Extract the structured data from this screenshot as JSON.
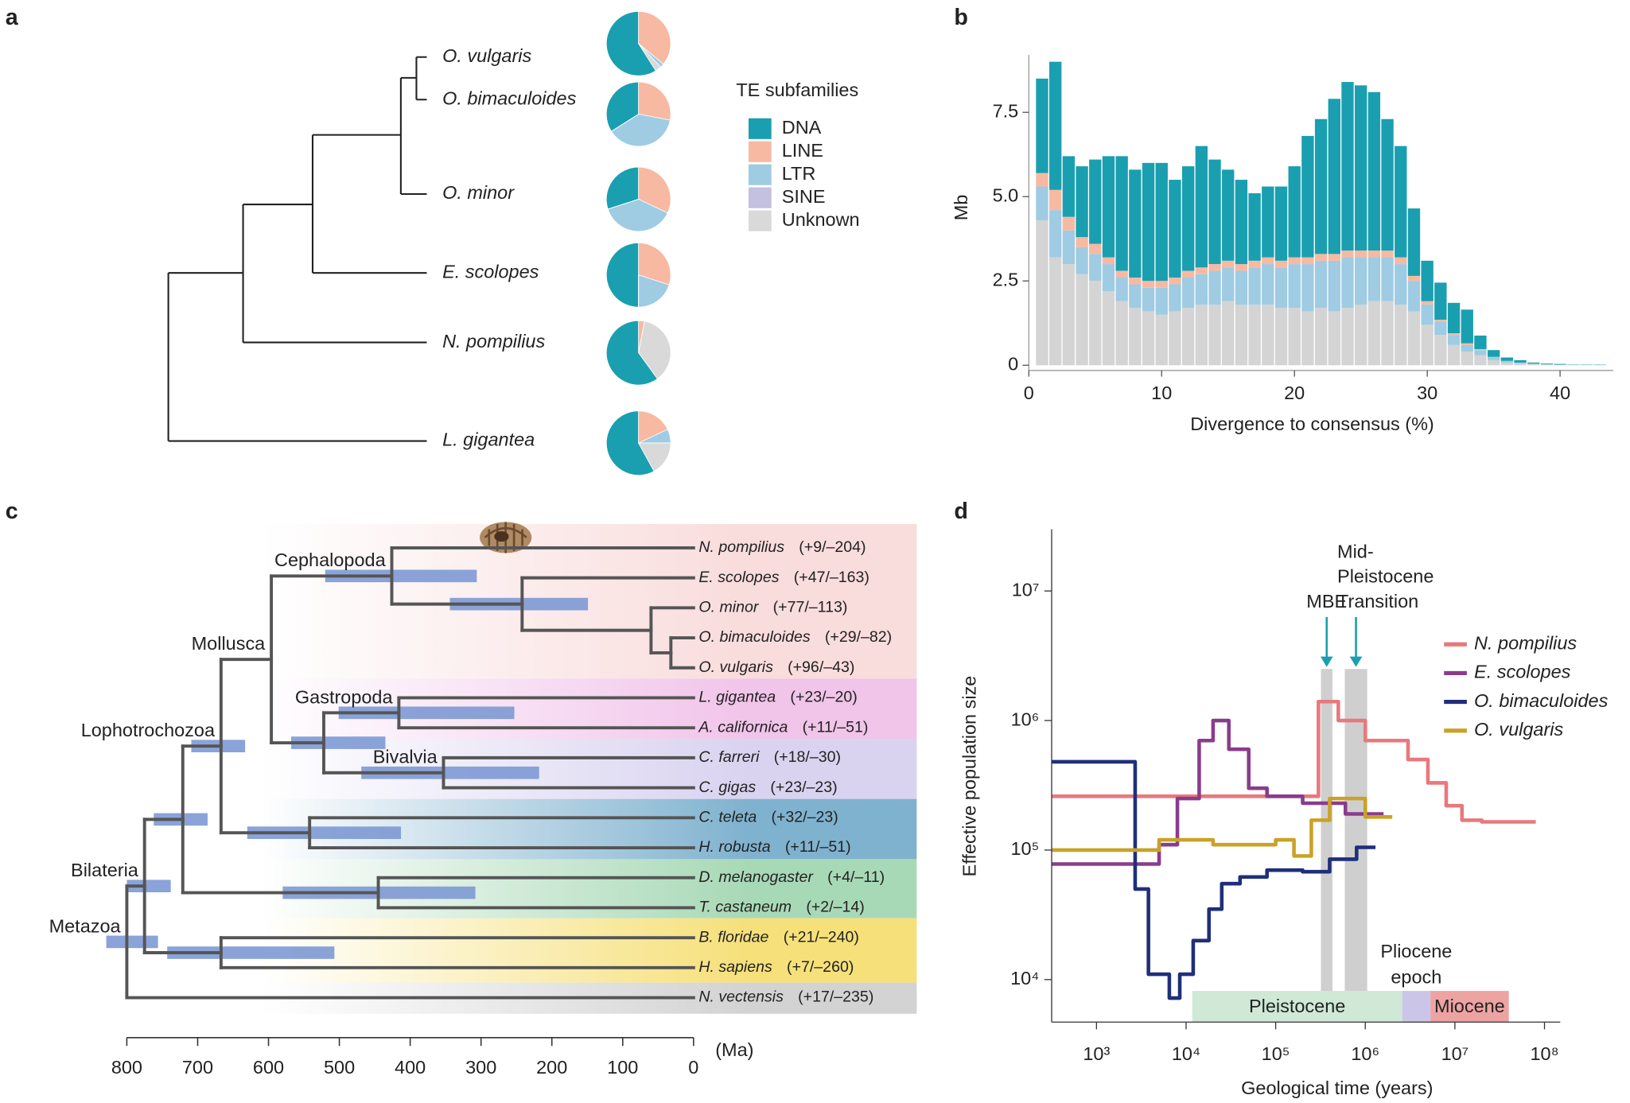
{
  "panel_labels": [
    "a",
    "b",
    "c",
    "d"
  ],
  "chart_data": [
    {
      "type": "pie",
      "legend_title": "TE subfamilies",
      "categories": [
        "DNA",
        "LINE",
        "LTR",
        "SINE",
        "Unknown"
      ],
      "colors": [
        "#1a9fb0",
        "#f7b9a1",
        "#9fcbe3",
        "#c3c0e0",
        "#d9d9d9"
      ],
      "series": [
        {
          "name": "O. vulgaris",
          "values": [
            59,
            36,
            2,
            0,
            3
          ]
        },
        {
          "name": "O. bimaculoides",
          "values": [
            34,
            28,
            38,
            0,
            0
          ]
        },
        {
          "name": "O. minor",
          "values": [
            30,
            32,
            38,
            0,
            0
          ]
        },
        {
          "name": "E. scolopes",
          "values": [
            50,
            30,
            20,
            0,
            0
          ]
        },
        {
          "name": "N. pompilius",
          "values": [
            60,
            3,
            0,
            0,
            37
          ]
        },
        {
          "name": "L. gigantea",
          "values": [
            58,
            18,
            7,
            0,
            17
          ]
        }
      ]
    },
    {
      "type": "bar",
      "stacked": true,
      "xlabel": "Divergence to consensus (%)",
      "ylabel": "Mb",
      "x": [
        1,
        2,
        3,
        4,
        5,
        6,
        7,
        8,
        9,
        10,
        11,
        12,
        13,
        14,
        15,
        16,
        17,
        18,
        19,
        20,
        21,
        22,
        23,
        24,
        25,
        26,
        27,
        28,
        29,
        30,
        31,
        32,
        33,
        34,
        35,
        36,
        37,
        38,
        39,
        40,
        41,
        42,
        43
      ],
      "xlim": [
        0,
        44
      ],
      "xticks": [
        0,
        10,
        20,
        30,
        40
      ],
      "ylim": [
        0,
        9.2
      ],
      "yticks": [
        0,
        2.5,
        {
          "value": 5,
          "label": "5.0"
        },
        7.5
      ],
      "series": [
        {
          "name": "Unknown",
          "color": "#d4d4d4",
          "values": [
            4.3,
            3.2,
            3.0,
            2.7,
            2.5,
            2.2,
            1.9,
            1.7,
            1.6,
            1.5,
            1.6,
            1.7,
            1.8,
            1.8,
            1.9,
            1.8,
            1.8,
            1.8,
            1.7,
            1.7,
            1.6,
            1.7,
            1.6,
            1.7,
            1.8,
            1.9,
            1.9,
            1.8,
            1.6,
            1.2,
            0.9,
            0.6,
            0.4,
            0.3,
            0.15,
            0.08,
            0.05,
            0.03,
            0.02,
            0.01,
            0.01,
            0.01,
            0.01
          ]
        },
        {
          "name": "LTR",
          "color": "#9fcbe3",
          "values": [
            1.0,
            1.4,
            1.0,
            0.8,
            0.8,
            0.8,
            0.7,
            0.7,
            0.7,
            0.8,
            0.8,
            0.9,
            0.9,
            1.0,
            1.0,
            1.0,
            1.1,
            1.2,
            1.2,
            1.3,
            1.4,
            1.4,
            1.5,
            1.5,
            1.4,
            1.3,
            1.3,
            1.2,
            0.9,
            0.6,
            0.4,
            0.3,
            0.2,
            0.15,
            0.1,
            0.05,
            0.03,
            0.02,
            0.01,
            0.01,
            0,
            0,
            0
          ]
        },
        {
          "name": "LINE",
          "color": "#f7b9a1",
          "values": [
            0.4,
            0.6,
            0.4,
            0.3,
            0.3,
            0.2,
            0.2,
            0.2,
            0.2,
            0.2,
            0.2,
            0.2,
            0.2,
            0.2,
            0.2,
            0.2,
            0.2,
            0.2,
            0.2,
            0.2,
            0.2,
            0.2,
            0.2,
            0.2,
            0.2,
            0.2,
            0.2,
            0.2,
            0.15,
            0.1,
            0.05,
            0.05,
            0.05,
            0.03,
            0,
            0,
            0,
            0,
            0,
            0,
            0,
            0,
            0
          ]
        },
        {
          "name": "DNA",
          "color": "#1a9fb0",
          "values": [
            2.8,
            3.8,
            1.8,
            2.1,
            2.5,
            3.0,
            3.4,
            3.2,
            3.5,
            3.5,
            2.9,
            3.1,
            3.6,
            3.1,
            2.7,
            2.5,
            2.0,
            2.1,
            2.2,
            2.7,
            3.6,
            4.0,
            4.6,
            5.0,
            4.9,
            4.7,
            3.9,
            3.3,
            2.0,
            1.2,
            1.1,
            0.9,
            1.0,
            0.4,
            0.2,
            0.1,
            0.07,
            0.03,
            0.02,
            0.02,
            0.01,
            0.01,
            0.01
          ]
        }
      ]
    },
    {
      "type": "tree",
      "unit": "(Ma)",
      "xlim": [
        800,
        0
      ],
      "xticks": [
        800,
        700,
        600,
        500,
        400,
        300,
        200,
        100,
        0
      ],
      "tree": {
        "age": 800,
        "ci": [
          829,
          756
        ],
        "label": "Metazoa",
        "children": [
          {
            "age": 775,
            "ci": [
              800,
              738
            ],
            "label": "Bilateria",
            "children": [
              {
                "age": 721,
                "ci": [
                  762,
                  686
                ],
                "children": [
                  {
                    "age": 667,
                    "ci": [
                      709,
                      633
                    ],
                    "label": "Lophotrochozoa",
                    "children": [
                      {
                        "age": 596,
                        "label": "Mollusca",
                        "children": [
                          {
                            "age": 426,
                            "ci": [
                              520,
                              306
                            ],
                            "label": "Cephalopoda",
                            "children": [
                              {
                                "taxon": "N. pompilius",
                                "genes": "(+9/–204)"
                              },
                              {
                                "age": 242,
                                "ci": [
                                  344,
                                  149
                                ],
                                "children": [
                                  {
                                    "taxon": "E. scolopes",
                                    "genes": "(+47/–163)"
                                  },
                                  {
                                    "age": 60,
                                    "children": [
                                      {
                                        "taxon": "O. minor",
                                        "genes": "(+77/–113)"
                                      },
                                      {
                                        "age": 32,
                                        "children": [
                                          {
                                            "taxon": "O. bimaculoides",
                                            "genes": "(+29/–82)"
                                          },
                                          {
                                            "taxon": "O. vulgaris",
                                            "genes": "(+96/–43)"
                                          }
                                        ]
                                      }
                                    ]
                                  }
                                ]
                              }
                            ]
                          },
                          {
                            "age": 522,
                            "ci": [
                              568,
                              435
                            ],
                            "children": [
                              {
                                "age": 416,
                                "ci": [
                                  501,
                                  253
                                ],
                                "label": "Gastropoda",
                                "children": [
                                  {
                                    "taxon": "L. gigantea",
                                    "genes": "(+23/–20)"
                                  },
                                  {
                                    "taxon": "A. californica",
                                    "genes": "(+11/–51)"
                                  }
                                ]
                              },
                              {
                                "age": 353,
                                "ci": [
                                  469,
                                  218
                                ],
                                "label": "Bivalvia",
                                "children": [
                                  {
                                    "taxon": "C. farreri",
                                    "genes": "(+18/–30)"
                                  },
                                  {
                                    "taxon": "C. gigas",
                                    "genes": "(+23/–23)"
                                  }
                                ]
                              }
                            ]
                          }
                        ]
                      },
                      {
                        "age": 542,
                        "ci": [
                          630,
                          413
                        ],
                        "children": [
                          {
                            "taxon": "C. teleta",
                            "genes": "(+32/–23)"
                          },
                          {
                            "taxon": "H. robusta",
                            "genes": "(+11/–51)"
                          }
                        ]
                      }
                    ]
                  },
                  {
                    "age": 445,
                    "ci": [
                      580,
                      308
                    ],
                    "children": [
                      {
                        "taxon": "D. melanogaster",
                        "genes": "(+4/–11)"
                      },
                      {
                        "taxon": "T. castaneum",
                        "genes": "(+2/–14)"
                      }
                    ]
                  }
                ]
              },
              {
                "age": 667,
                "ci": [
                  743,
                  507
                ],
                "children": [
                  {
                    "taxon": "B. floridae",
                    "genes": "(+21/–240)"
                  },
                  {
                    "taxon": "H. sapiens",
                    "genes": "(+7/–260)"
                  }
                ]
              }
            ]
          },
          {
            "taxon": "N. vectensis",
            "genes": "(+17/–235)"
          }
        ]
      }
    },
    {
      "type": "line",
      "xlog": true,
      "ylog": true,
      "xlabel": "Geological time (years)",
      "ylabel": "Effective population size",
      "xlim": [
        316,
        150000000
      ],
      "xticks": [
        {
          "value": 1000,
          "label": "10³"
        },
        {
          "value": 10000,
          "label": "10⁴"
        },
        {
          "value": 100000,
          "label": "10⁵"
        },
        {
          "value": 1000000,
          "label": "10⁶"
        },
        {
          "value": 10000000,
          "label": "10⁷"
        },
        {
          "value": 100000000,
          "label": "10⁸"
        }
      ],
      "ylim": [
        4700,
        30000000
      ],
      "yticks": [
        {
          "value": 10000,
          "label": "10⁴"
        },
        {
          "value": 100000,
          "label": "10⁵"
        },
        {
          "value": 1000000,
          "label": "10⁶"
        },
        {
          "value": 10000000,
          "label": "10⁷"
        }
      ],
      "series": [
        {
          "name": "N. pompilius",
          "color": "#e8787c",
          "x": [
            316,
            300000,
            300000,
            500000,
            500000,
            1000000,
            1000000,
            3000000,
            3000000,
            5000000,
            5000000,
            8000000,
            8000000,
            12000000,
            12000000,
            20000000,
            20000000,
            80000000
          ],
          "values": [
            260000,
            260000,
            1400000,
            1400000,
            1000000,
            1000000,
            700000,
            700000,
            500000,
            500000,
            330000,
            330000,
            220000,
            220000,
            170000,
            170000,
            165000,
            165000
          ]
        },
        {
          "name": "E. scolopes",
          "color": "#8a3c8c",
          "x": [
            316,
            5000,
            5000,
            8000,
            8000,
            14000,
            14000,
            20000,
            20000,
            30000,
            30000,
            50000,
            50000,
            80000,
            80000,
            200000,
            200000,
            600000,
            600000,
            1600000
          ],
          "values": [
            78000,
            78000,
            110000,
            110000,
            250000,
            250000,
            700000,
            700000,
            1000000,
            1000000,
            600000,
            600000,
            300000,
            300000,
            260000,
            260000,
            230000,
            230000,
            190000,
            190000
          ]
        },
        {
          "name": "O. bimaculoides",
          "color": "#1f2f7a",
          "x": [
            316,
            2700,
            2700,
            3800,
            3800,
            6500,
            6500,
            8500,
            8500,
            12000,
            12000,
            18000,
            18000,
            25000,
            25000,
            40000,
            40000,
            80000,
            80000,
            200000,
            200000,
            400000,
            400000,
            800000,
            800000,
            1300000
          ],
          "values": [
            480000,
            480000,
            50000,
            50000,
            11000,
            11000,
            7200,
            7200,
            11000,
            11000,
            20000,
            20000,
            35000,
            35000,
            55000,
            55000,
            62000,
            62000,
            70000,
            70000,
            68000,
            68000,
            85000,
            85000,
            105000,
            105000
          ]
        },
        {
          "name": "O. vulgaris",
          "color": "#c9a227",
          "x": [
            316,
            5000,
            5000,
            20000,
            20000,
            100000,
            100000,
            160000,
            160000,
            250000,
            250000,
            400000,
            400000,
            1000000,
            1000000,
            2000000
          ],
          "values": [
            100000,
            100000,
            120000,
            120000,
            110000,
            110000,
            120000,
            120000,
            90000,
            90000,
            170000,
            170000,
            250000,
            250000,
            180000,
            180000
          ]
        }
      ],
      "annotations": [
        {
          "label": [
            "MBE"
          ],
          "x_range": [
            320000,
            430000
          ],
          "y_top": 2500000
        },
        {
          "label": [
            "Mid-",
            "Pleistocene",
            "Transition"
          ],
          "x_range": [
            590000,
            1050000
          ],
          "y_top": 2500000
        }
      ],
      "epochs": [
        {
          "name": "Pleistocene",
          "x_range": [
            11700,
            2580000
          ],
          "color": "#cfe9d6"
        },
        {
          "name": [
            "Pliocene",
            "epoch"
          ],
          "x_range": [
            2580000,
            5330000
          ],
          "color": "#cbc6e8"
        },
        {
          "name": "Miocene",
          "x_range": [
            5330000,
            40000000
          ],
          "color": "#eea3a3"
        }
      ]
    }
  ]
}
